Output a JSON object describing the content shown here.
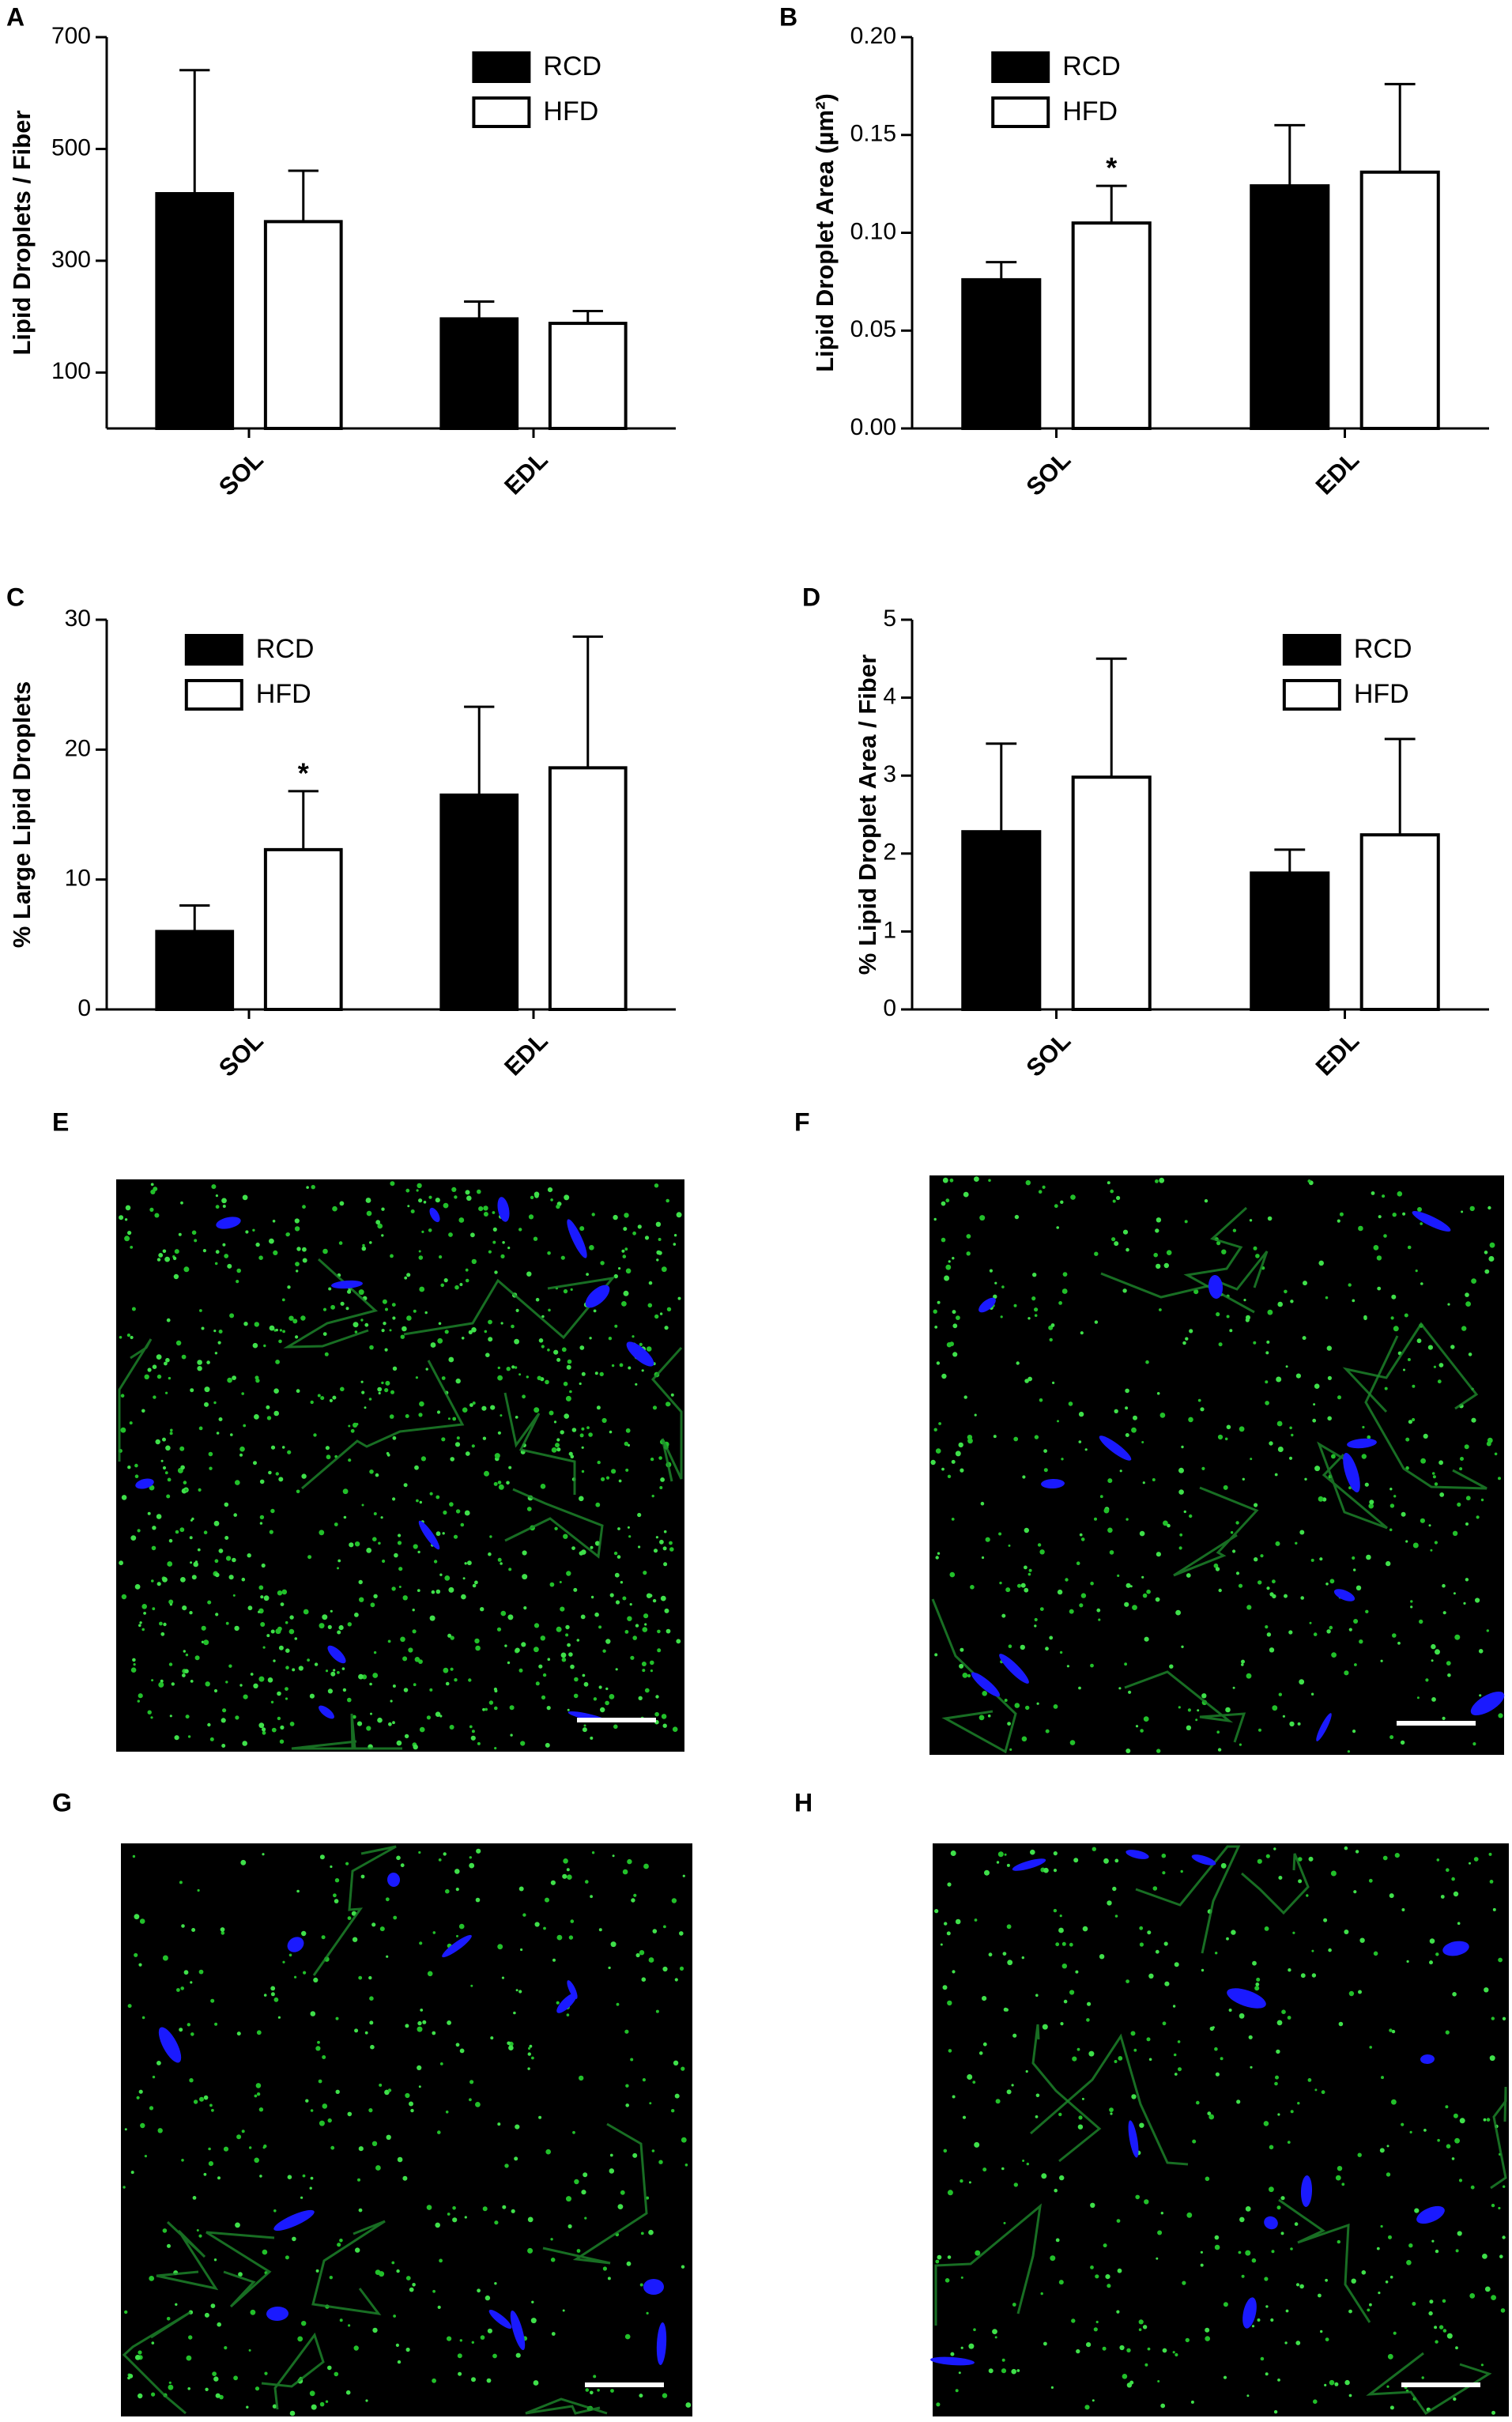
{
  "chart_data": [
    {
      "type": "bar",
      "label": "A",
      "y_label": "Lipid Droplets / Fiber",
      "categories": [
        "SOL",
        "EDL"
      ],
      "series": [
        {
          "name": "RCD",
          "color": "#000000",
          "values": [
            420,
            196
          ],
          "errors": [
            221,
            31
          ]
        },
        {
          "name": "HFD",
          "color": "#ffffff",
          "values": [
            370,
            188
          ],
          "errors": [
            91,
            22
          ]
        }
      ],
      "ylim": [
        0,
        700
      ],
      "yticks": [
        100,
        300,
        500,
        700
      ],
      "legend": "upper right"
    },
    {
      "type": "bar",
      "label": "B",
      "y_label": "Lipid Droplet Area (µm²)",
      "categories": [
        "SOL",
        "EDL"
      ],
      "series": [
        {
          "name": "RCD",
          "color": "#000000",
          "values": [
            0.076,
            0.124
          ],
          "errors": [
            0.009,
            0.031
          ]
        },
        {
          "name": "HFD",
          "color": "#ffffff",
          "values": [
            0.105,
            0.131
          ],
          "errors": [
            0.019,
            0.045
          ],
          "markers": [
            "*",
            null
          ]
        }
      ],
      "ylim": [
        0,
        0.2
      ],
      "yticks": [
        {
          "value": 0,
          "label": "0.00"
        },
        0.05,
        {
          "value": 0.1,
          "label": "0.10"
        },
        0.15,
        {
          "value": 0.2,
          "label": "0.20"
        }
      ],
      "legend": "upper left"
    },
    {
      "type": "bar",
      "label": "C",
      "y_label": "% Large Lipid Droplets",
      "categories": [
        "SOL",
        "EDL"
      ],
      "series": [
        {
          "name": "RCD",
          "color": "#000000",
          "values": [
            6.0,
            16.5
          ],
          "errors": [
            2.0,
            6.8
          ]
        },
        {
          "name": "HFD",
          "color": "#ffffff",
          "values": [
            12.3,
            18.6
          ],
          "errors": [
            4.5,
            10.1
          ],
          "markers": [
            "*",
            null
          ]
        }
      ],
      "ylim": [
        0,
        30
      ],
      "yticks": [
        0,
        10,
        20,
        30
      ],
      "legend": "upper left"
    },
    {
      "type": "bar",
      "label": "D",
      "y_label": "% Lipid Droplet Area / Fiber",
      "categories": [
        "SOL",
        "EDL"
      ],
      "series": [
        {
          "name": "RCD",
          "color": "#000000",
          "values": [
            2.28,
            1.75
          ],
          "errors": [
            1.13,
            0.3
          ]
        },
        {
          "name": "HFD",
          "color": "#ffffff",
          "values": [
            2.98,
            2.24
          ],
          "errors": [
            1.52,
            1.23
          ]
        }
      ],
      "ylim": [
        0,
        5
      ],
      "yticks": [
        0,
        1,
        2,
        3,
        4,
        5
      ],
      "legend": "upper right"
    }
  ],
  "images": [
    {
      "label": "E"
    },
    {
      "label": "F"
    },
    {
      "label": "G"
    },
    {
      "label": "H"
    }
  ]
}
